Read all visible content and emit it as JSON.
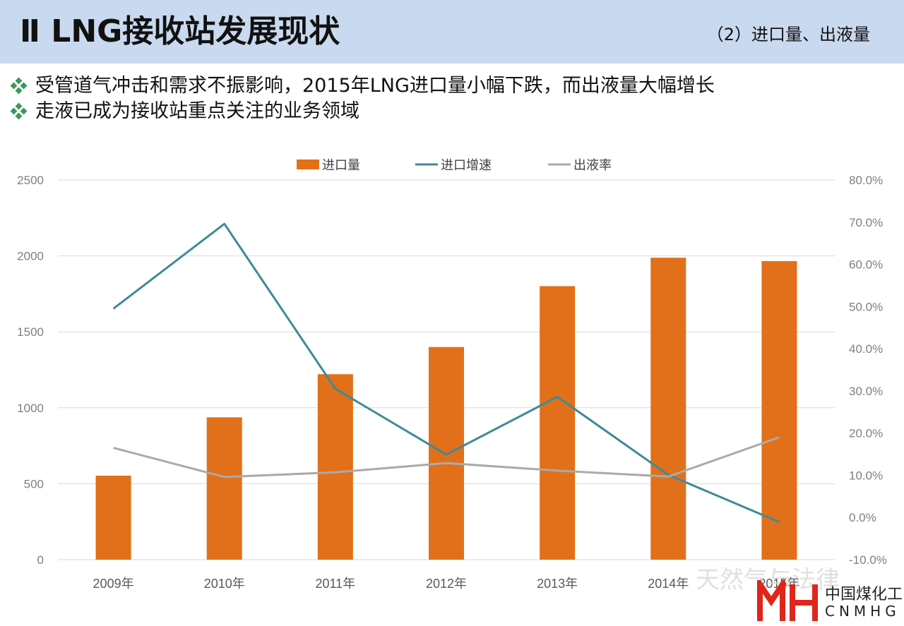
{
  "header": {
    "title": "Ⅱ LNG接收站发展现状",
    "section": "（2）进口量、出液量"
  },
  "bullets": [
    {
      "text": "受管道气冲击和需求不振影响，2015年LNG进口量小幅下跌，而出液量大幅增长"
    },
    {
      "text": "走液已成为接收站重点关注的业务领域"
    }
  ],
  "chart_data": {
    "type": "bar",
    "categories": [
      "2009年",
      "2010年",
      "2011年",
      "2012年",
      "2013年",
      "2014年",
      "2015年"
    ],
    "series": [
      {
        "name": "进口量",
        "type": "bar",
        "axis": "left",
        "color": "#e2701a",
        "values": [
          553,
          937,
          1221,
          1400,
          1801,
          1988,
          1966
        ]
      },
      {
        "name": "进口增速",
        "type": "line",
        "axis": "right",
        "color": "#3e8b97",
        "values": [
          0.495,
          0.696,
          0.305,
          0.149,
          0.286,
          0.101,
          -0.011
        ]
      },
      {
        "name": "出液率",
        "type": "line",
        "axis": "right",
        "color": "#aaaaaa",
        "values": [
          0.165,
          0.096,
          0.107,
          0.129,
          0.111,
          0.097,
          0.19
        ]
      }
    ],
    "left_axis": {
      "min": 0,
      "max": 2500,
      "ticks": [
        "0",
        "500",
        "1000",
        "1500",
        "2000",
        "2500"
      ]
    },
    "right_axis": {
      "min": -0.1,
      "max": 0.8,
      "ticks": [
        "-10.0%",
        "0.0%",
        "10.0%",
        "20.0%",
        "30.0%",
        "40.0%",
        "50.0%",
        "60.0%",
        "70.0%",
        "80.0%"
      ]
    },
    "grid": true,
    "legend": "top-center"
  },
  "watermark": "天然气与法律",
  "logo": {
    "cn": "中国煤化工",
    "en": "CNMHG"
  }
}
